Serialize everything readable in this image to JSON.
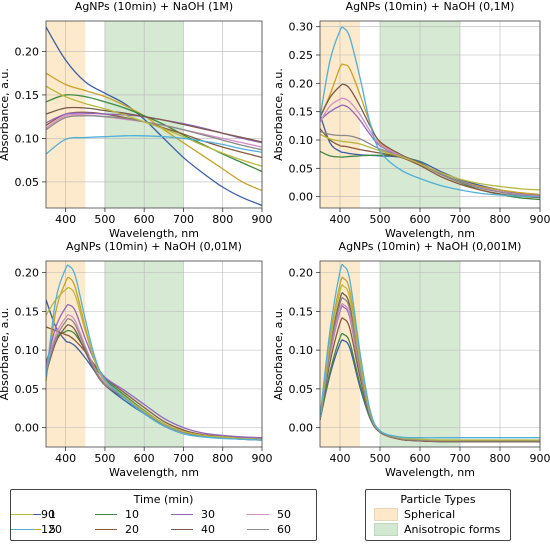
{
  "chart_data": [
    {
      "type": "line",
      "title": "AgNPs (10min) + NaOH (1M)",
      "xlabel": "Wavelength, nm",
      "ylabel": "Absorbance, a.u.",
      "xlim": [
        350,
        900
      ],
      "ylim": [
        0.02,
        0.235
      ],
      "xticks": [
        400,
        500,
        600,
        700,
        800,
        900
      ],
      "yticks": [
        "0.05",
        "0.10",
        "0.15",
        "0.20"
      ],
      "ytick_values": [
        0.05,
        0.1,
        0.15,
        0.2
      ],
      "grid": true,
      "shaded_regions": [
        {
          "type": "Spherical",
          "from": 350,
          "to": 450
        },
        {
          "type": "Anisotropic forms",
          "from": 500,
          "to": 700
        }
      ],
      "x": [
        350,
        400,
        450,
        500,
        550,
        600,
        650,
        700,
        750,
        800,
        850,
        900
      ],
      "series": [
        {
          "name": "1",
          "values": [
            0.228,
            0.19,
            0.165,
            0.152,
            0.14,
            0.122,
            0.1,
            0.078,
            0.06,
            0.044,
            0.032,
            0.023
          ]
        },
        {
          "name": "5",
          "values": [
            0.175,
            0.162,
            0.155,
            0.148,
            0.138,
            0.126,
            0.11,
            0.095,
            0.08,
            0.065,
            0.05,
            0.04
          ]
        },
        {
          "name": "10",
          "values": [
            0.142,
            0.15,
            0.148,
            0.142,
            0.135,
            0.126,
            0.116,
            0.104,
            0.093,
            0.082,
            0.072,
            0.062
          ]
        },
        {
          "name": "20",
          "values": [
            0.115,
            0.128,
            0.13,
            0.128,
            0.124,
            0.119,
            0.112,
            0.105,
            0.097,
            0.09,
            0.084,
            0.078
          ]
        },
        {
          "name": "30",
          "values": [
            0.118,
            0.128,
            0.129,
            0.128,
            0.127,
            0.125,
            0.121,
            0.117,
            0.112,
            0.106,
            0.1,
            0.095
          ]
        },
        {
          "name": "40",
          "values": [
            0.128,
            0.135,
            0.135,
            0.132,
            0.129,
            0.125,
            0.121,
            0.116,
            0.111,
            0.106,
            0.101,
            0.096
          ]
        },
        {
          "name": "50",
          "values": [
            0.112,
            0.126,
            0.127,
            0.125,
            0.122,
            0.119,
            0.115,
            0.11,
            0.105,
            0.1,
            0.095,
            0.09
          ]
        },
        {
          "name": "60",
          "values": [
            0.11,
            0.124,
            0.126,
            0.125,
            0.123,
            0.119,
            0.115,
            0.11,
            0.104,
            0.098,
            0.092,
            0.087
          ]
        },
        {
          "name": "90",
          "values": [
            0.16,
            0.148,
            0.14,
            0.134,
            0.127,
            0.119,
            0.111,
            0.102,
            0.092,
            0.083,
            0.075,
            0.068
          ]
        },
        {
          "name": "120",
          "values": [
            0.082,
            0.099,
            0.101,
            0.102,
            0.103,
            0.103,
            0.102,
            0.1,
            0.097,
            0.093,
            0.088,
            0.084
          ]
        }
      ]
    },
    {
      "type": "line",
      "title": "AgNPs (10min) + NaOH (0,1M)",
      "xlabel": "Wavelength, nm",
      "ylabel": "Absorbance, a.u.",
      "xlim": [
        350,
        900
      ],
      "ylim": [
        -0.02,
        0.31
      ],
      "xticks": [
        400,
        500,
        600,
        700,
        800,
        900
      ],
      "yticks": [
        "0.00",
        "0.05",
        "0.10",
        "0.15",
        "0.20",
        "0.25",
        "0.30"
      ],
      "ytick_values": [
        0.0,
        0.05,
        0.1,
        0.15,
        0.2,
        0.25,
        0.3
      ],
      "grid": true,
      "shaded_regions": [
        {
          "type": "Spherical",
          "from": 350,
          "to": 450
        },
        {
          "type": "Anisotropic forms",
          "from": 500,
          "to": 700
        }
      ],
      "x": [
        350,
        375,
        400,
        410,
        425,
        450,
        475,
        500,
        550,
        600,
        650,
        700,
        750,
        800,
        850,
        900
      ],
      "series": [
        {
          "name": "1",
          "values": [
            0.145,
            0.095,
            0.08,
            0.078,
            0.076,
            0.074,
            0.073,
            0.072,
            0.07,
            0.062,
            0.045,
            0.03,
            0.02,
            0.012,
            0.006,
            0.003
          ]
        },
        {
          "name": "5",
          "values": [
            0.14,
            0.18,
            0.228,
            0.233,
            0.225,
            0.18,
            0.13,
            0.095,
            0.075,
            0.058,
            0.04,
            0.027,
            0.018,
            0.012,
            0.007,
            0.004
          ]
        },
        {
          "name": "10",
          "values": [
            0.08,
            0.072,
            0.07,
            0.07,
            0.071,
            0.072,
            0.073,
            0.073,
            0.072,
            0.06,
            0.04,
            0.025,
            0.012,
            0.004,
            -0.002,
            -0.005
          ]
        },
        {
          "name": "20",
          "values": [
            0.12,
            0.1,
            0.09,
            0.089,
            0.087,
            0.083,
            0.08,
            0.077,
            0.07,
            0.055,
            0.036,
            0.022,
            0.012,
            0.005,
            0.001,
            -0.002
          ]
        },
        {
          "name": "30",
          "values": [
            0.135,
            0.15,
            0.16,
            0.161,
            0.155,
            0.135,
            0.11,
            0.09,
            0.072,
            0.058,
            0.04,
            0.026,
            0.016,
            0.009,
            0.004,
            0.001
          ]
        },
        {
          "name": "40",
          "values": [
            0.14,
            0.175,
            0.195,
            0.198,
            0.19,
            0.16,
            0.125,
            0.097,
            0.075,
            0.059,
            0.041,
            0.027,
            0.016,
            0.009,
            0.004,
            0.001
          ]
        },
        {
          "name": "50",
          "values": [
            0.132,
            0.16,
            0.172,
            0.173,
            0.167,
            0.145,
            0.116,
            0.092,
            0.073,
            0.058,
            0.04,
            0.026,
            0.016,
            0.009,
            0.004,
            0.001
          ]
        },
        {
          "name": "60",
          "values": [
            0.115,
            0.11,
            0.108,
            0.108,
            0.107,
            0.102,
            0.093,
            0.084,
            0.072,
            0.058,
            0.04,
            0.026,
            0.015,
            0.008,
            0.003,
            0.0
          ]
        },
        {
          "name": "90",
          "values": [
            0.11,
            0.102,
            0.098,
            0.097,
            0.096,
            0.093,
            0.087,
            0.081,
            0.071,
            0.058,
            0.043,
            0.031,
            0.023,
            0.018,
            0.014,
            0.012
          ]
        },
        {
          "name": "120",
          "values": [
            0.14,
            0.24,
            0.293,
            0.297,
            0.28,
            0.21,
            0.13,
            0.08,
            0.048,
            0.032,
            0.02,
            0.012,
            0.006,
            0.003,
            0.001,
            0.0
          ]
        }
      ]
    },
    {
      "type": "line",
      "title": "AgNPs (10min) + NaOH (0,01M)",
      "xlabel": "Wavelength, nm",
      "ylabel": "Absorbance, a.u.",
      "xlim": [
        350,
        900
      ],
      "ylim": [
        -0.025,
        0.215
      ],
      "xticks": [
        400,
        500,
        600,
        700,
        800,
        900
      ],
      "yticks": [
        "0.00",
        "0.05",
        "0.10",
        "0.15",
        "0.20"
      ],
      "ytick_values": [
        0.0,
        0.05,
        0.1,
        0.15,
        0.2
      ],
      "grid": true,
      "shaded_regions": [
        {
          "type": "Spherical",
          "from": 350,
          "to": 450
        },
        {
          "type": "Anisotropic forms",
          "from": 500,
          "to": 700
        }
      ],
      "x": [
        350,
        375,
        400,
        410,
        425,
        450,
        475,
        500,
        550,
        600,
        650,
        700,
        750,
        800,
        850,
        900
      ],
      "series": [
        {
          "name": "1",
          "values": [
            0.165,
            0.13,
            0.112,
            0.11,
            0.105,
            0.09,
            0.072,
            0.055,
            0.035,
            0.018,
            0.004,
            -0.006,
            -0.011,
            -0.013,
            -0.015,
            -0.016
          ]
        },
        {
          "name": "5",
          "values": [
            0.06,
            0.15,
            0.188,
            0.193,
            0.18,
            0.13,
            0.085,
            0.06,
            0.04,
            0.02,
            0.004,
            -0.005,
            -0.01,
            -0.012,
            -0.013,
            -0.014
          ]
        },
        {
          "name": "10",
          "values": [
            0.085,
            0.115,
            0.124,
            0.125,
            0.12,
            0.1,
            0.078,
            0.062,
            0.042,
            0.022,
            0.005,
            -0.005,
            -0.01,
            -0.012,
            -0.014,
            -0.015
          ]
        },
        {
          "name": "20",
          "values": [
            0.13,
            0.125,
            0.12,
            0.118,
            0.112,
            0.098,
            0.08,
            0.064,
            0.045,
            0.026,
            0.008,
            -0.003,
            -0.009,
            -0.011,
            -0.013,
            -0.014
          ]
        },
        {
          "name": "30",
          "values": [
            0.08,
            0.13,
            0.155,
            0.158,
            0.15,
            0.115,
            0.085,
            0.065,
            0.048,
            0.03,
            0.012,
            0.0,
            -0.007,
            -0.01,
            -0.012,
            -0.013
          ]
        },
        {
          "name": "40",
          "values": [
            0.07,
            0.11,
            0.13,
            0.132,
            0.125,
            0.098,
            0.072,
            0.055,
            0.038,
            0.02,
            0.004,
            -0.006,
            -0.011,
            -0.013,
            -0.015,
            -0.016
          ]
        },
        {
          "name": "50",
          "values": [
            0.075,
            0.12,
            0.142,
            0.145,
            0.137,
            0.105,
            0.076,
            0.058,
            0.04,
            0.021,
            0.005,
            -0.005,
            -0.01,
            -0.012,
            -0.014,
            -0.015
          ]
        },
        {
          "name": "60",
          "values": [
            0.072,
            0.115,
            0.137,
            0.14,
            0.132,
            0.102,
            0.074,
            0.056,
            0.039,
            0.02,
            0.004,
            -0.006,
            -0.011,
            -0.013,
            -0.015,
            -0.016
          ]
        },
        {
          "name": "90",
          "values": [
            0.145,
            0.165,
            0.178,
            0.18,
            0.17,
            0.125,
            0.085,
            0.06,
            0.04,
            0.021,
            0.005,
            -0.005,
            -0.01,
            -0.012,
            -0.014,
            -0.015
          ]
        },
        {
          "name": "120",
          "values": [
            0.065,
            0.165,
            0.205,
            0.208,
            0.195,
            0.14,
            0.09,
            0.062,
            0.038,
            0.018,
            0.002,
            -0.008,
            -0.012,
            -0.014,
            -0.015,
            -0.016
          ]
        }
      ]
    },
    {
      "type": "line",
      "title": "AgNPs (10min) + NaOH (0,001M)",
      "xlabel": "Wavelength, nm",
      "ylabel": "Absorbance, a.u.",
      "xlim": [
        350,
        900
      ],
      "ylim": [
        -0.025,
        0.215
      ],
      "xticks": [
        400,
        500,
        600,
        700,
        800,
        900
      ],
      "yticks": [
        "0.00",
        "0.05",
        "0.10",
        "0.15",
        "0.20"
      ],
      "ytick_values": [
        0.0,
        0.05,
        0.1,
        0.15,
        0.2
      ],
      "grid": true,
      "shaded_regions": [
        {
          "type": "Spherical",
          "from": 350,
          "to": 450
        },
        {
          "type": "Anisotropic forms",
          "from": 500,
          "to": 700
        }
      ],
      "x": [
        350,
        375,
        400,
        410,
        425,
        450,
        475,
        500,
        550,
        600,
        650,
        700,
        750,
        800,
        850,
        900
      ],
      "peak_values": [
        0.112,
        0.192,
        0.12,
        0.14,
        0.155,
        0.172,
        0.158,
        0.166,
        0.182,
        0.208
      ],
      "series": [
        {
          "name": "1",
          "values": [
            0.01,
            0.068,
            0.108,
            0.112,
            0.102,
            0.052,
            0.012,
            -0.006,
            -0.015,
            -0.017,
            -0.018,
            -0.018,
            -0.018,
            -0.018,
            -0.018,
            -0.018
          ]
        },
        {
          "name": "5",
          "values": [
            0.012,
            0.115,
            0.185,
            0.192,
            0.175,
            0.09,
            0.022,
            -0.005,
            -0.014,
            -0.016,
            -0.017,
            -0.017,
            -0.017,
            -0.017,
            -0.017,
            -0.017
          ]
        },
        {
          "name": "10",
          "values": [
            0.01,
            0.072,
            0.116,
            0.12,
            0.109,
            0.056,
            0.013,
            -0.006,
            -0.015,
            -0.017,
            -0.018,
            -0.018,
            -0.018,
            -0.018,
            -0.018,
            -0.018
          ]
        },
        {
          "name": "20",
          "values": [
            0.011,
            0.084,
            0.135,
            0.14,
            0.127,
            0.065,
            0.015,
            -0.006,
            -0.015,
            -0.017,
            -0.018,
            -0.018,
            -0.018,
            -0.018,
            -0.018,
            -0.018
          ]
        },
        {
          "name": "30",
          "values": [
            0.011,
            0.093,
            0.15,
            0.155,
            0.141,
            0.072,
            0.017,
            -0.005,
            -0.014,
            -0.016,
            -0.017,
            -0.017,
            -0.017,
            -0.017,
            -0.017,
            -0.017
          ]
        },
        {
          "name": "40",
          "values": [
            0.012,
            0.103,
            0.166,
            0.172,
            0.156,
            0.08,
            0.019,
            -0.005,
            -0.014,
            -0.016,
            -0.017,
            -0.017,
            -0.017,
            -0.017,
            -0.017,
            -0.017
          ]
        },
        {
          "name": "50",
          "values": [
            0.011,
            0.095,
            0.153,
            0.158,
            0.144,
            0.074,
            0.017,
            -0.005,
            -0.014,
            -0.016,
            -0.017,
            -0.017,
            -0.017,
            -0.017,
            -0.017,
            -0.017
          ]
        },
        {
          "name": "60",
          "values": [
            0.011,
            0.099,
            0.16,
            0.166,
            0.151,
            0.077,
            0.018,
            -0.005,
            -0.014,
            -0.016,
            -0.017,
            -0.017,
            -0.017,
            -0.017,
            -0.017,
            -0.017
          ]
        },
        {
          "name": "90",
          "values": [
            0.012,
            0.109,
            0.176,
            0.182,
            0.166,
            0.085,
            0.02,
            -0.004,
            -0.013,
            -0.015,
            -0.016,
            -0.016,
            -0.016,
            -0.016,
            -0.016,
            -0.016
          ]
        },
        {
          "name": "120",
          "values": [
            0.013,
            0.125,
            0.201,
            0.208,
            0.189,
            0.097,
            0.023,
            -0.004,
            -0.012,
            -0.013,
            -0.013,
            -0.013,
            -0.013,
            -0.013,
            -0.013,
            -0.013
          ]
        }
      ]
    }
  ],
  "series_colors": {
    "1": "#3b5ea8",
    "5": "#c9a227",
    "10": "#3e8a3e",
    "20": "#8b5a3c",
    "30": "#9467bd",
    "40": "#7a5a4a",
    "50": "#d98cc8",
    "60": "#8a8a8a",
    "90": "#b8b83a",
    "120": "#4fb0d8"
  },
  "region_colors": {
    "Spherical": "#fde9c9",
    "Anisotropic forms": "#d3e8d1"
  },
  "legend_time": {
    "title": "Time (min)",
    "entries": [
      "1",
      "5",
      "10",
      "20",
      "30",
      "40",
      "50",
      "60",
      "90",
      "120"
    ]
  },
  "legend_particles": {
    "title": "Particle Types",
    "entries": [
      "Spherical",
      "Anisotropic forms"
    ]
  }
}
